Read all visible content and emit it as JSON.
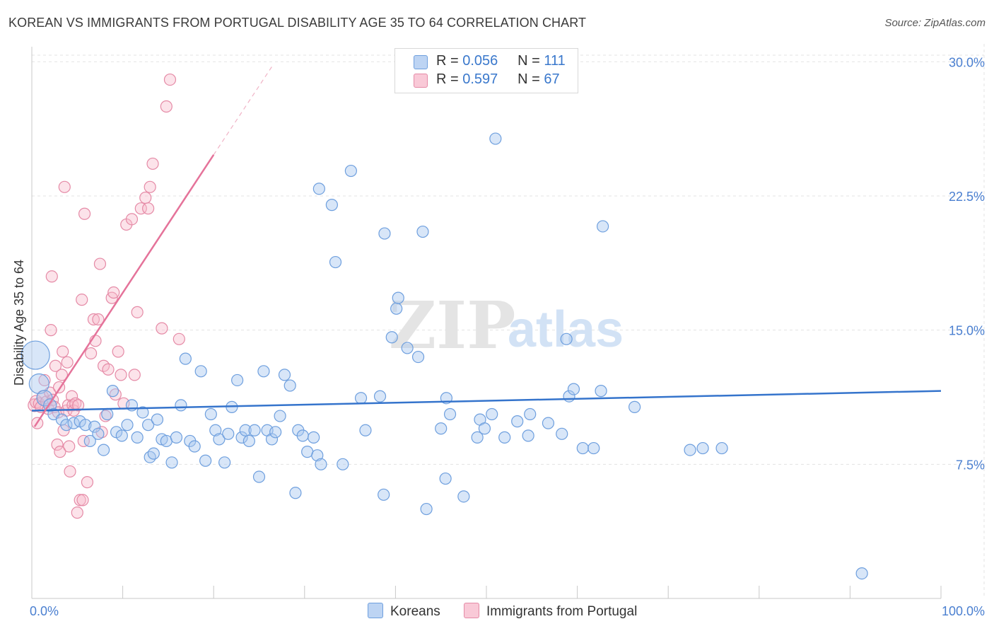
{
  "title": "KOREAN VS IMMIGRANTS FROM PORTUGAL DISABILITY AGE 35 TO 64 CORRELATION CHART",
  "source": "Source: ZipAtlas.com",
  "watermark": {
    "zip": "ZIP",
    "atlas": "atlas"
  },
  "legend": {
    "r_label": "R =",
    "n_label": "N =",
    "series": [
      {
        "name": "Koreans",
        "r": "0.056",
        "n": "111",
        "color": "#a9c8f0",
        "stroke": "#6e9fde"
      },
      {
        "name": "Immigrants from Portugal",
        "r": "0.597",
        "n": "67",
        "color": "#f7b9cb",
        "stroke": "#e58aa6"
      }
    ]
  },
  "chart_data": {
    "type": "scatter",
    "title": "KOREAN VS IMMIGRANTS FROM PORTUGAL DISABILITY AGE 35 TO 64 CORRELATION CHART",
    "xlabel": "",
    "ylabel": "Disability Age 35 to 64",
    "xlim": [
      0,
      100
    ],
    "ylim": [
      0,
      31
    ],
    "x_tick_labels": [
      "0.0%",
      "100.0%"
    ],
    "y_ticks": [
      7.5,
      15.0,
      22.5,
      30.0
    ],
    "y_tick_labels": [
      "7.5%",
      "15.0%",
      "22.5%",
      "30.0%"
    ],
    "grid": true,
    "series": [
      {
        "name": "Koreans",
        "color": "#6e9fde",
        "trend": {
          "x": [
            0,
            100
          ],
          "y": [
            10.5,
            11.6
          ],
          "style": "solid"
        },
        "points": [
          [
            0.4,
            13.6,
            20
          ],
          [
            0.8,
            12.0,
            14
          ],
          [
            1.4,
            11.2,
            11
          ],
          [
            2.0,
            10.8,
            9
          ],
          [
            2.4,
            10.3,
            8
          ],
          [
            3.3,
            10.0,
            8
          ],
          [
            3.8,
            9.7,
            8
          ],
          [
            4.6,
            9.8,
            8
          ],
          [
            5.3,
            9.9,
            8
          ],
          [
            5.9,
            9.7,
            8
          ],
          [
            6.4,
            8.8,
            8
          ],
          [
            6.9,
            9.6,
            8
          ],
          [
            7.3,
            9.2,
            8
          ],
          [
            7.9,
            8.3,
            8
          ],
          [
            8.3,
            10.3,
            8
          ],
          [
            8.9,
            11.6,
            8
          ],
          [
            9.3,
            9.3,
            8
          ],
          [
            9.9,
            9.1,
            8
          ],
          [
            10.5,
            9.7,
            8
          ],
          [
            11.0,
            10.8,
            8
          ],
          [
            11.6,
            9.0,
            8
          ],
          [
            12.2,
            10.4,
            8
          ],
          [
            12.8,
            9.7,
            8
          ],
          [
            13.0,
            7.9,
            8
          ],
          [
            13.4,
            8.1,
            8
          ],
          [
            13.8,
            10.0,
            8
          ],
          [
            14.3,
            8.9,
            8
          ],
          [
            14.8,
            8.8,
            8
          ],
          [
            15.4,
            7.6,
            8
          ],
          [
            15.9,
            9.0,
            8
          ],
          [
            16.4,
            10.8,
            8
          ],
          [
            16.9,
            13.4,
            8
          ],
          [
            17.4,
            8.8,
            8
          ],
          [
            17.9,
            8.5,
            8
          ],
          [
            18.6,
            12.7,
            8
          ],
          [
            19.1,
            7.7,
            8
          ],
          [
            19.7,
            10.3,
            8
          ],
          [
            20.2,
            9.4,
            8
          ],
          [
            20.6,
            8.9,
            8
          ],
          [
            21.2,
            7.6,
            8
          ],
          [
            21.6,
            9.2,
            8
          ],
          [
            22.0,
            10.7,
            8
          ],
          [
            22.6,
            12.2,
            8
          ],
          [
            23.1,
            9.0,
            8
          ],
          [
            23.5,
            9.4,
            8
          ],
          [
            23.9,
            8.8,
            8
          ],
          [
            24.5,
            9.4,
            8
          ],
          [
            25.0,
            6.8,
            8
          ],
          [
            25.5,
            12.7,
            8
          ],
          [
            25.9,
            9.4,
            8
          ],
          [
            26.4,
            8.9,
            8
          ],
          [
            26.8,
            9.3,
            8
          ],
          [
            27.3,
            10.2,
            8
          ],
          [
            27.8,
            12.5,
            8
          ],
          [
            28.4,
            11.9,
            8
          ],
          [
            29.0,
            5.9,
            8
          ],
          [
            29.3,
            9.4,
            8
          ],
          [
            29.8,
            9.1,
            8
          ],
          [
            30.3,
            8.2,
            8
          ],
          [
            31.0,
            9.0,
            8
          ],
          [
            31.4,
            8.0,
            8
          ],
          [
            31.8,
            7.5,
            8
          ],
          [
            31.6,
            22.9,
            8
          ],
          [
            33.0,
            22.0,
            8
          ],
          [
            33.4,
            18.8,
            8
          ],
          [
            34.2,
            7.5,
            8
          ],
          [
            35.1,
            23.9,
            8
          ],
          [
            36.2,
            11.2,
            8
          ],
          [
            36.7,
            9.4,
            8
          ],
          [
            38.3,
            11.3,
            8
          ],
          [
            38.7,
            5.8,
            8
          ],
          [
            38.8,
            20.4,
            8
          ],
          [
            39.6,
            14.6,
            8
          ],
          [
            40.1,
            16.2,
            8
          ],
          [
            40.3,
            16.8,
            8
          ],
          [
            41.3,
            14.0,
            8
          ],
          [
            42.5,
            13.5,
            8
          ],
          [
            43.0,
            20.5,
            8
          ],
          [
            43.4,
            5.0,
            8
          ],
          [
            45.0,
            9.5,
            8
          ],
          [
            45.5,
            6.7,
            8
          ],
          [
            45.6,
            11.2,
            8
          ],
          [
            46.0,
            10.3,
            8
          ],
          [
            47.5,
            5.7,
            8
          ],
          [
            49.0,
            9.0,
            8
          ],
          [
            49.3,
            10.0,
            8
          ],
          [
            49.8,
            9.5,
            8
          ],
          [
            50.6,
            10.3,
            8
          ],
          [
            51.0,
            25.7,
            8
          ],
          [
            52.0,
            9.0,
            8
          ],
          [
            53.4,
            9.9,
            8
          ],
          [
            54.6,
            9.1,
            8
          ],
          [
            54.8,
            10.3,
            8
          ],
          [
            56.8,
            9.8,
            8
          ],
          [
            58.3,
            9.2,
            8
          ],
          [
            58.8,
            14.5,
            8
          ],
          [
            59.1,
            11.3,
            8
          ],
          [
            59.6,
            11.7,
            8
          ],
          [
            60.6,
            8.4,
            8
          ],
          [
            61.8,
            8.4,
            8
          ],
          [
            62.6,
            11.6,
            8
          ],
          [
            62.8,
            20.8,
            8
          ],
          [
            66.3,
            10.7,
            8
          ],
          [
            72.4,
            8.3,
            8
          ],
          [
            73.8,
            8.4,
            8
          ],
          [
            75.9,
            8.4,
            8
          ],
          [
            91.3,
            1.4,
            8
          ]
        ]
      },
      {
        "name": "Immigrants from Portugal",
        "color": "#e58aa6",
        "trend": {
          "x": [
            0.3,
            20.0
          ],
          "y": [
            9.6,
            24.8
          ],
          "style": "solid",
          "extension": {
            "x": [
              20.0,
              26.5
            ],
            "y": [
              24.8,
              29.8
            ]
          }
        },
        "points": [
          [
            0.3,
            10.8,
            9
          ],
          [
            0.5,
            11.0,
            9
          ],
          [
            0.6,
            9.8,
            8
          ],
          [
            0.8,
            10.9,
            8
          ],
          [
            1.0,
            10.7,
            8
          ],
          [
            1.2,
            11.3,
            8
          ],
          [
            1.4,
            12.2,
            8
          ],
          [
            1.6,
            11.0,
            8
          ],
          [
            1.8,
            10.6,
            8
          ],
          [
            2.0,
            11.5,
            8
          ],
          [
            2.1,
            15.0,
            8
          ],
          [
            2.2,
            18.0,
            8
          ],
          [
            2.3,
            11.1,
            8
          ],
          [
            2.5,
            10.7,
            8
          ],
          [
            2.6,
            13.0,
            8
          ],
          [
            2.8,
            8.6,
            8
          ],
          [
            2.9,
            10.4,
            8
          ],
          [
            3.0,
            11.8,
            8
          ],
          [
            3.1,
            8.2,
            8
          ],
          [
            3.3,
            12.5,
            8
          ],
          [
            3.4,
            13.8,
            8
          ],
          [
            3.5,
            9.4,
            8
          ],
          [
            3.6,
            23.0,
            8
          ],
          [
            3.8,
            10.5,
            8
          ],
          [
            3.9,
            13.2,
            8
          ],
          [
            4.0,
            10.8,
            8
          ],
          [
            4.1,
            8.5,
            8
          ],
          [
            4.2,
            7.1,
            8
          ],
          [
            4.4,
            11.3,
            8
          ],
          [
            4.5,
            10.8,
            8
          ],
          [
            4.6,
            10.5,
            8
          ],
          [
            4.8,
            10.9,
            8
          ],
          [
            5.0,
            4.8,
            8
          ],
          [
            5.1,
            10.8,
            8
          ],
          [
            5.3,
            5.5,
            8
          ],
          [
            5.5,
            16.7,
            8
          ],
          [
            5.6,
            5.5,
            8
          ],
          [
            5.7,
            8.8,
            8
          ],
          [
            5.8,
            21.5,
            8
          ],
          [
            6.1,
            6.5,
            8
          ],
          [
            6.5,
            13.7,
            8
          ],
          [
            6.8,
            15.6,
            8
          ],
          [
            7.0,
            14.4,
            8
          ],
          [
            7.3,
            15.6,
            8
          ],
          [
            7.5,
            18.7,
            8
          ],
          [
            7.7,
            9.3,
            8
          ],
          [
            7.9,
            13.0,
            8
          ],
          [
            8.1,
            10.2,
            8
          ],
          [
            8.4,
            12.8,
            8
          ],
          [
            8.8,
            16.8,
            8
          ],
          [
            9.0,
            17.1,
            8
          ],
          [
            9.2,
            11.4,
            8
          ],
          [
            9.5,
            13.8,
            8
          ],
          [
            9.8,
            12.5,
            8
          ],
          [
            10.1,
            10.9,
            8
          ],
          [
            10.4,
            20.9,
            8
          ],
          [
            11.0,
            21.2,
            8
          ],
          [
            11.3,
            12.5,
            8
          ],
          [
            11.6,
            16.0,
            8
          ],
          [
            12.0,
            21.8,
            8
          ],
          [
            12.5,
            22.4,
            8
          ],
          [
            12.8,
            21.8,
            8
          ],
          [
            13.0,
            23.0,
            8
          ],
          [
            13.3,
            24.3,
            8
          ],
          [
            14.3,
            15.1,
            8
          ],
          [
            14.8,
            27.5,
            8
          ],
          [
            15.2,
            29.0,
            8
          ],
          [
            16.2,
            14.5,
            8
          ]
        ]
      }
    ]
  }
}
